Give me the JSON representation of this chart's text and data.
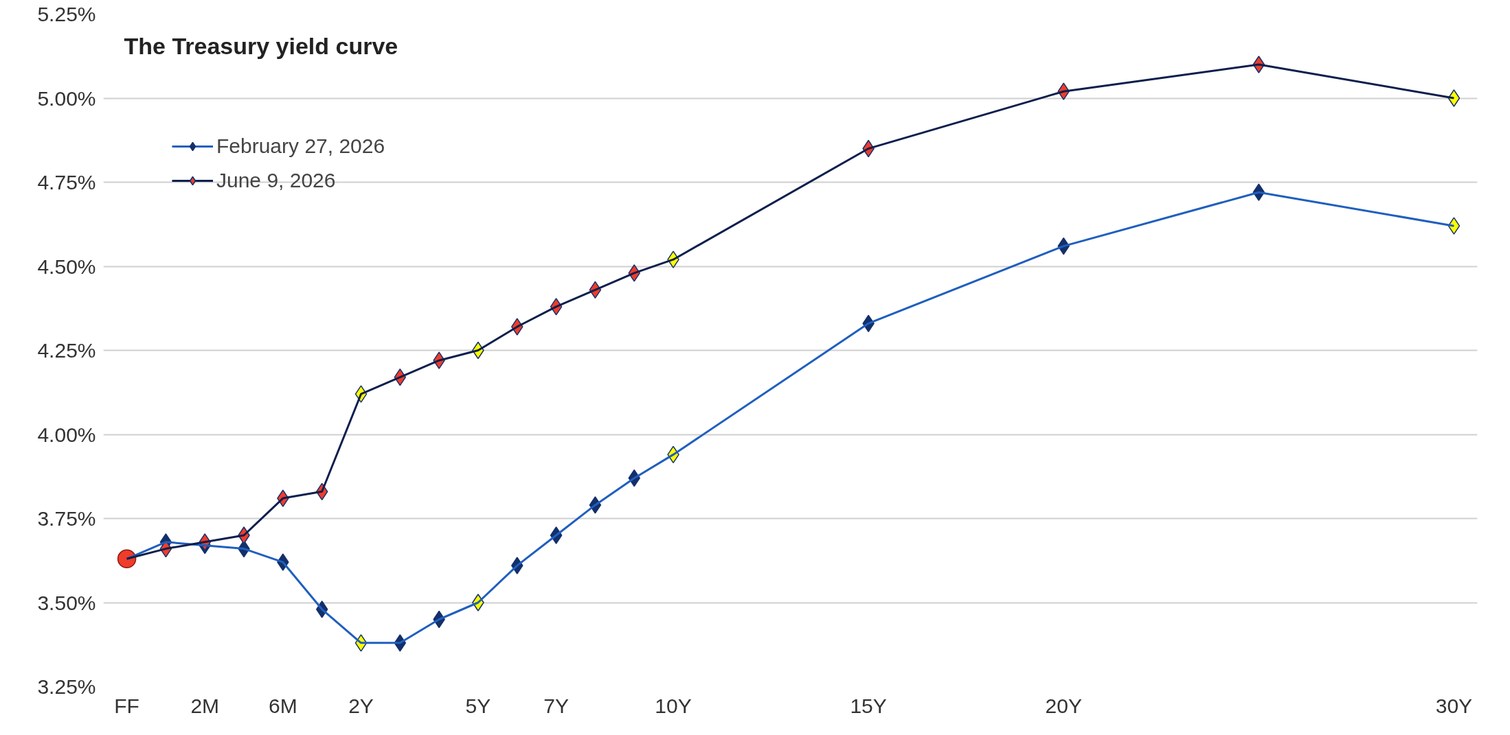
{
  "chart_data": {
    "type": "line",
    "title": "The Treasury yield curve",
    "categories": [
      "FF",
      null,
      "2M",
      null,
      "6M",
      null,
      "2Y",
      null,
      null,
      "5Y",
      null,
      "7Y",
      null,
      null,
      "10Y",
      null,
      null,
      null,
      null,
      "15Y",
      null,
      null,
      null,
      null,
      "20Y",
      null,
      null,
      null,
      null,
      null,
      null,
      null,
      null,
      null,
      "30Y"
    ],
    "ylim": [
      3.25,
      5.25
    ],
    "yticks": [
      {
        "value": 3.25,
        "label": "3.25%"
      },
      {
        "value": 3.5,
        "label": "3.50%"
      },
      {
        "value": 3.75,
        "label": "3.75%"
      },
      {
        "value": 4.0,
        "label": "4.00%"
      },
      {
        "value": 4.25,
        "label": "4.25%"
      },
      {
        "value": 4.5,
        "label": "4.50%"
      },
      {
        "value": 4.75,
        "label": "4.75%"
      },
      {
        "value": 5.0,
        "label": "5.00%"
      },
      {
        "value": 5.25,
        "label": "5.25%"
      }
    ],
    "grid": "y",
    "legend": "top left",
    "marker": "diamond",
    "line_style": "solid",
    "series": [
      {
        "name": "February 27, 2026",
        "color": "#1f5fbf",
        "values": [
          3.63,
          3.68,
          3.67,
          3.66,
          3.62,
          3.48,
          3.38,
          3.38,
          3.45,
          3.5,
          3.61,
          3.7,
          3.79,
          3.87,
          3.94,
          null,
          null,
          null,
          null,
          4.33,
          null,
          null,
          null,
          null,
          4.56,
          null,
          null,
          null,
          null,
          4.72,
          null,
          null,
          null,
          null,
          4.62
        ],
        "colors": [
          null,
          "#13306b",
          "#13306b",
          "#13306b",
          "#13306b",
          "#13306b",
          "#ffff00",
          "#13306b",
          "#13306b",
          "#ffff00",
          "#13306b",
          "#13306b",
          "#13306b",
          "#13306b",
          "#ffff00",
          null,
          null,
          null,
          null,
          "#13306b",
          null,
          null,
          null,
          null,
          "#13306b",
          null,
          null,
          null,
          null,
          "#13306b",
          null,
          null,
          null,
          null,
          "#ffff00"
        ]
      },
      {
        "name": "June 9, 2026",
        "color": "#0d1f4d",
        "values": [
          3.63,
          3.66,
          3.68,
          3.7,
          3.81,
          3.83,
          4.12,
          4.17,
          4.22,
          4.25,
          4.32,
          4.38,
          4.43,
          4.48,
          4.52,
          null,
          null,
          null,
          null,
          4.85,
          null,
          null,
          null,
          null,
          5.02,
          null,
          null,
          null,
          null,
          5.1,
          null,
          null,
          null,
          null,
          5.0
        ],
        "colors": [
          null,
          "#f03c2a",
          "#f03c2a",
          "#f03c2a",
          "#f03c2a",
          "#f03c2a",
          "#ffff00",
          "#f03c2a",
          "#f03c2a",
          "#ffff00",
          "#f03c2a",
          "#f03c2a",
          "#f03c2a",
          "#f03c2a",
          "#ffff00",
          null,
          null,
          null,
          null,
          "#f03c2a",
          null,
          null,
          null,
          null,
          "#f03c2a",
          null,
          null,
          null,
          null,
          "#f03c2a",
          null,
          null,
          null,
          null,
          "#ffff00"
        ]
      },
      {
        "type": "scatter",
        "marker": "circle",
        "values": [
          3.63,
          null,
          null,
          null,
          null,
          null,
          null,
          null,
          null,
          null,
          null,
          null,
          null,
          null,
          null,
          null,
          null,
          null,
          null,
          null,
          null,
          null,
          null,
          null,
          null,
          null,
          null,
          null,
          null,
          null,
          null,
          null,
          null,
          null,
          null
        ],
        "color": "#f03c2a"
      }
    ]
  }
}
